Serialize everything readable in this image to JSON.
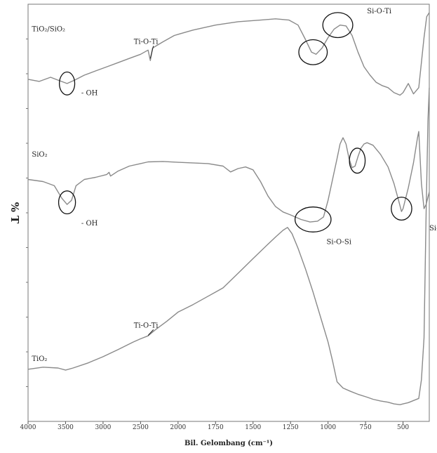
{
  "chart_data": {
    "type": "line",
    "title": "",
    "xlabel": "Bil. Gelombang (cm⁻¹)",
    "ylabel": "% T",
    "xlim": [
      4000,
      400
    ],
    "x_reversed": true,
    "ylim": [
      0,
      100
    ],
    "x_ticks": [
      4000,
      3500,
      3000,
      2500,
      2000,
      1750,
      1500,
      1250,
      1000,
      750,
      500
    ],
    "x_tick_labels": [
      "4000",
      "3500",
      "3000",
      "2500",
      "2000",
      "1750",
      "1500",
      "1250",
      "1000",
      "750",
      "500"
    ],
    "series": [
      {
        "name": "TiO₂/SiO₂",
        "points": [
          [
            4000,
            82
          ],
          [
            3850,
            81.5
          ],
          [
            3700,
            82.5
          ],
          [
            3600,
            81.8
          ],
          [
            3480,
            81
          ],
          [
            3380,
            81.8
          ],
          [
            3250,
            83
          ],
          [
            3100,
            84
          ],
          [
            2950,
            85
          ],
          [
            2800,
            86
          ],
          [
            2650,
            87
          ],
          [
            2500,
            88
          ],
          [
            2400,
            89
          ],
          [
            2370,
            86.5
          ],
          [
            2340,
            89.5
          ],
          [
            2200,
            91
          ],
          [
            2050,
            92.5
          ],
          [
            1900,
            93.8
          ],
          [
            1750,
            95
          ],
          [
            1600,
            95.8
          ],
          [
            1450,
            96.2
          ],
          [
            1350,
            96.5
          ],
          [
            1260,
            96.2
          ],
          [
            1200,
            95
          ],
          [
            1150,
            91.5
          ],
          [
            1110,
            88.5
          ],
          [
            1080,
            88
          ],
          [
            1040,
            89.5
          ],
          [
            1000,
            92
          ],
          [
            960,
            94
          ],
          [
            920,
            95
          ],
          [
            880,
            94.8
          ],
          [
            840,
            92.5
          ],
          [
            800,
            88.5
          ],
          [
            760,
            85
          ],
          [
            720,
            83
          ],
          [
            680,
            81.3
          ],
          [
            640,
            80.5
          ],
          [
            600,
            80
          ],
          [
            560,
            78.8
          ],
          [
            520,
            78.2
          ],
          [
            500,
            78.8
          ],
          [
            480,
            81
          ],
          [
            460,
            78.5
          ],
          [
            440,
            80
          ],
          [
            420,
            92
          ],
          [
            410,
            97
          ],
          [
            400,
            98
          ]
        ]
      },
      {
        "name": "SiO₂",
        "points": [
          [
            4000,
            58
          ],
          [
            3800,
            57.5
          ],
          [
            3650,
            56.5
          ],
          [
            3550,
            53.5
          ],
          [
            3480,
            52
          ],
          [
            3420,
            53
          ],
          [
            3360,
            56.5
          ],
          [
            3250,
            58
          ],
          [
            3100,
            58.5
          ],
          [
            2950,
            59.2
          ],
          [
            2920,
            59.7
          ],
          [
            2900,
            58.8
          ],
          [
            2800,
            60
          ],
          [
            2650,
            61.2
          ],
          [
            2500,
            61.8
          ],
          [
            2400,
            62.2
          ],
          [
            2200,
            62.3
          ],
          [
            2000,
            62.1
          ],
          [
            1800,
            61.8
          ],
          [
            1700,
            61.2
          ],
          [
            1650,
            59.8
          ],
          [
            1600,
            60.6
          ],
          [
            1550,
            61
          ],
          [
            1500,
            60.3
          ],
          [
            1450,
            57.5
          ],
          [
            1400,
            54
          ],
          [
            1350,
            51.5
          ],
          [
            1300,
            50.2
          ],
          [
            1250,
            49.5
          ],
          [
            1180,
            48.4
          ],
          [
            1120,
            47.8
          ],
          [
            1070,
            48
          ],
          [
            1030,
            49
          ],
          [
            1000,
            53
          ],
          [
            970,
            58
          ],
          [
            940,
            63
          ],
          [
            920,
            66.5
          ],
          [
            900,
            68
          ],
          [
            880,
            66.5
          ],
          [
            860,
            63
          ],
          [
            840,
            60.8
          ],
          [
            820,
            61.2
          ],
          [
            800,
            63.5
          ],
          [
            780,
            65.5
          ],
          [
            760,
            66.5
          ],
          [
            740,
            66.8
          ],
          [
            700,
            66.2
          ],
          [
            650,
            64
          ],
          [
            600,
            61
          ],
          [
            560,
            57
          ],
          [
            530,
            53
          ],
          [
            510,
            50.3
          ],
          [
            500,
            51
          ],
          [
            480,
            56
          ],
          [
            460,
            62
          ],
          [
            445,
            68
          ],
          [
            440,
            69.5
          ],
          [
            430,
            57
          ],
          [
            420,
            51
          ],
          [
            412,
            52
          ],
          [
            400,
            55
          ]
        ]
      },
      {
        "name": "TiO₂",
        "points": [
          [
            4000,
            12.5
          ],
          [
            3800,
            13
          ],
          [
            3600,
            12.8
          ],
          [
            3500,
            12.3
          ],
          [
            3400,
            12.8
          ],
          [
            3200,
            14
          ],
          [
            3000,
            15.5
          ],
          [
            2800,
            17.2
          ],
          [
            2600,
            19
          ],
          [
            2500,
            19.8
          ],
          [
            2400,
            20.5
          ],
          [
            2300,
            22
          ],
          [
            2150,
            24
          ],
          [
            2000,
            26.2
          ],
          [
            1900,
            28
          ],
          [
            1800,
            30
          ],
          [
            1750,
            31
          ],
          [
            1700,
            32
          ],
          [
            1600,
            35.5
          ],
          [
            1500,
            39
          ],
          [
            1400,
            42.5
          ],
          [
            1350,
            44.2
          ],
          [
            1300,
            45.8
          ],
          [
            1270,
            46.5
          ],
          [
            1240,
            45
          ],
          [
            1200,
            41.5
          ],
          [
            1150,
            36.5
          ],
          [
            1100,
            31
          ],
          [
            1050,
            25
          ],
          [
            1000,
            19
          ],
          [
            970,
            14.5
          ],
          [
            940,
            9.5
          ],
          [
            900,
            8
          ],
          [
            850,
            7.2
          ],
          [
            800,
            6.5
          ],
          [
            740,
            5.8
          ],
          [
            700,
            5.3
          ],
          [
            650,
            4.9
          ],
          [
            600,
            4.6
          ],
          [
            560,
            4.2
          ],
          [
            520,
            4
          ],
          [
            500,
            4.2
          ],
          [
            480,
            4.5
          ],
          [
            460,
            5
          ],
          [
            440,
            5.5
          ],
          [
            430,
            10
          ],
          [
            420,
            20
          ],
          [
            412,
            50
          ],
          [
            405,
            72
          ],
          [
            400,
            80
          ]
        ]
      }
    ],
    "series_labels": [
      {
        "text": "TiO₂/SiO₂",
        "x": 3950,
        "y": 93.5
      },
      {
        "text": "SiO₂",
        "x": 3950,
        "y": 63.5
      },
      {
        "text": "TiO₂",
        "x": 3950,
        "y": 14.5
      }
    ],
    "annotations": [
      {
        "label": "Ti-O-Ti",
        "x": 2590,
        "y": 90.5,
        "arrow_to": [
          2370,
          87
        ]
      },
      {
        "label": "- OH",
        "x": 3290,
        "y": 78.2,
        "ellipse": [
          3480,
          81,
          205,
          5.5
        ]
      },
      {
        "label": "Si-O-Ti",
        "x": 740,
        "y": 97.8,
        "ellipse": [
          1100,
          88.5,
          190,
          6
        ]
      },
      {
        "label": "",
        "x": 0,
        "y": 0,
        "ellipse": [
          935,
          95,
          200,
          6
        ]
      },
      {
        "label": "- OH",
        "x": 3290,
        "y": 47,
        "ellipse": [
          3480,
          52.5,
          225,
          5.5
        ]
      },
      {
        "label": "Si-O-Si",
        "x": 1010,
        "y": 42.5,
        "ellipse": [
          1100,
          48.4,
          240,
          6
        ]
      },
      {
        "label": "",
        "x": 0,
        "y": 0,
        "ellipse": [
          805,
          62.5,
          105,
          6
        ]
      },
      {
        "label": "Si-O-Si",
        "x": 370,
        "y": 45.8,
        "ellipse": [
          510,
          51,
          105,
          5.5
        ]
      },
      {
        "label": "Ti-O-Ti",
        "x": 2590,
        "y": 22.5,
        "arrow_to": [
          2400,
          20.6
        ]
      }
    ],
    "legend": "none",
    "grid": false
  }
}
